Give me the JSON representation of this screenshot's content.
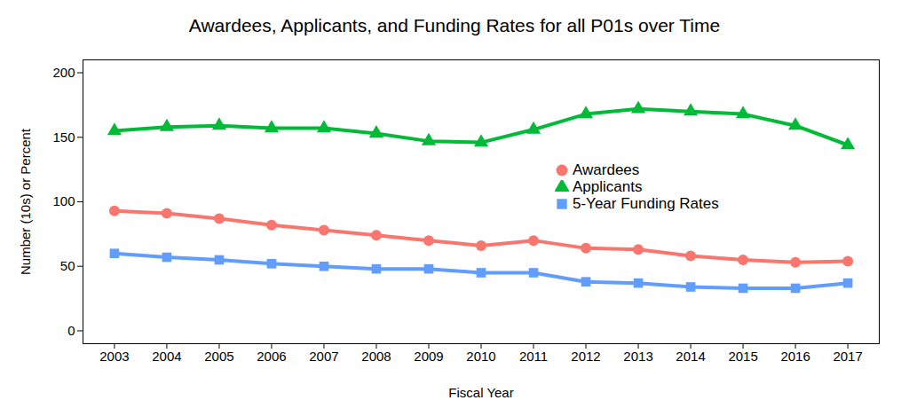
{
  "chart_data": {
    "type": "line",
    "title": "Awardees, Applicants, and Funding Rates for all P01s over Time",
    "x_label": "Fiscal Year",
    "y_label": "Number (10s) or Percent",
    "x": [
      2003,
      2004,
      2005,
      2006,
      2007,
      2008,
      2009,
      2010,
      2011,
      2012,
      2013,
      2014,
      2015,
      2016,
      2017
    ],
    "series": [
      {
        "name": "Awardees",
        "color": "#F8766D",
        "marker": "circle",
        "values": [
          93,
          91,
          87,
          82,
          78,
          74,
          70,
          66,
          70,
          64,
          63,
          58,
          55,
          53,
          54
        ]
      },
      {
        "name": "Applicants",
        "color": "#00BA38",
        "marker": "triangle",
        "values": [
          155,
          158,
          159,
          157,
          157,
          153,
          147,
          146,
          156,
          168,
          172,
          170,
          168,
          159,
          144
        ]
      },
      {
        "name": "5-Year Funding Rates",
        "color": "#619CFF",
        "marker": "square",
        "values": [
          60,
          57,
          55,
          52,
          50,
          48,
          48,
          45,
          45,
          38,
          37,
          34,
          33,
          33,
          37
        ]
      }
    ],
    "xlim": [
      2002.4,
      2017.6
    ],
    "xticks": [
      2003,
      2004,
      2005,
      2006,
      2007,
      2008,
      2009,
      2010,
      2011,
      2012,
      2013,
      2014,
      2015,
      2016,
      2017
    ],
    "ylim": [
      -10,
      210
    ],
    "yticks": [
      0,
      50,
      100,
      150,
      200
    ],
    "grid": false,
    "legend": "center"
  }
}
